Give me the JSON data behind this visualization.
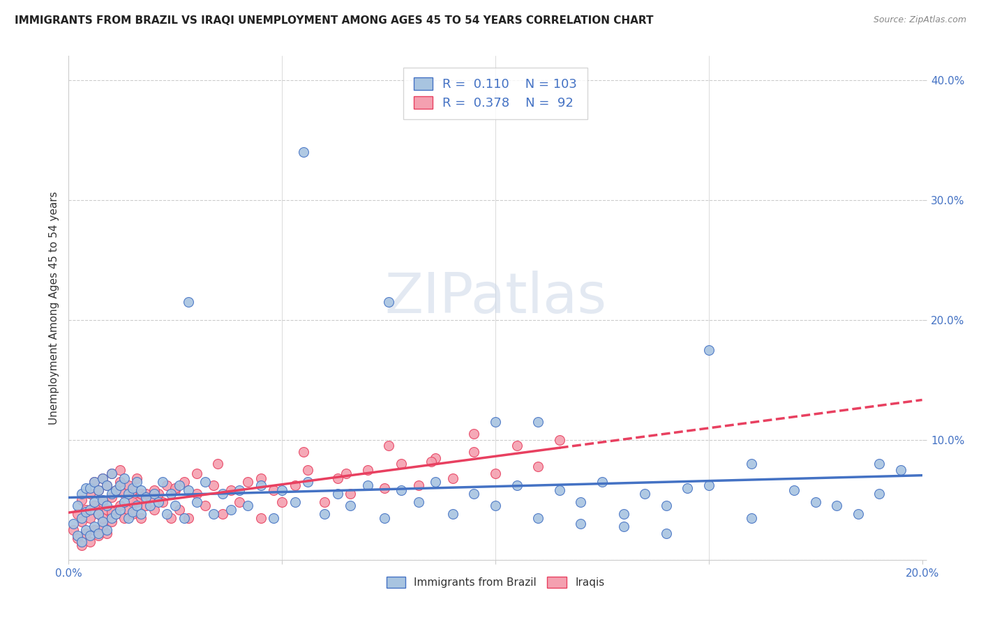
{
  "title": "IMMIGRANTS FROM BRAZIL VS IRAQI UNEMPLOYMENT AMONG AGES 45 TO 54 YEARS CORRELATION CHART",
  "source": "Source: ZipAtlas.com",
  "ylabel": "Unemployment Among Ages 45 to 54 years",
  "xlim": [
    0.0,
    0.2
  ],
  "ylim": [
    0.0,
    0.42
  ],
  "brazil_color": "#a8c4e0",
  "iraq_color": "#f4a0b0",
  "brazil_line_color": "#4472c4",
  "iraq_line_color": "#e84060",
  "brazil_R": 0.11,
  "brazil_N": 103,
  "iraq_R": 0.378,
  "iraq_N": 92,
  "watermark": "ZIPatlas",
  "brazil_scatter_x": [
    0.001,
    0.002,
    0.002,
    0.003,
    0.003,
    0.003,
    0.004,
    0.004,
    0.004,
    0.005,
    0.005,
    0.005,
    0.006,
    0.006,
    0.006,
    0.007,
    0.007,
    0.007,
    0.008,
    0.008,
    0.008,
    0.009,
    0.009,
    0.009,
    0.01,
    0.01,
    0.01,
    0.011,
    0.011,
    0.012,
    0.012,
    0.013,
    0.013,
    0.014,
    0.014,
    0.015,
    0.015,
    0.016,
    0.016,
    0.017,
    0.017,
    0.018,
    0.019,
    0.02,
    0.021,
    0.022,
    0.023,
    0.024,
    0.025,
    0.026,
    0.027,
    0.028,
    0.03,
    0.032,
    0.034,
    0.036,
    0.038,
    0.04,
    0.042,
    0.045,
    0.048,
    0.05,
    0.053,
    0.056,
    0.06,
    0.063,
    0.066,
    0.07,
    0.074,
    0.078,
    0.082,
    0.086,
    0.09,
    0.095,
    0.1,
    0.105,
    0.11,
    0.115,
    0.12,
    0.125,
    0.13,
    0.135,
    0.14,
    0.15,
    0.16,
    0.17,
    0.175,
    0.18,
    0.185,
    0.19,
    0.028,
    0.075,
    0.1,
    0.055,
    0.15,
    0.16,
    0.19,
    0.11,
    0.12,
    0.13,
    0.14,
    0.145,
    0.195
  ],
  "brazil_scatter_y": [
    0.03,
    0.02,
    0.045,
    0.015,
    0.035,
    0.055,
    0.025,
    0.04,
    0.06,
    0.02,
    0.042,
    0.06,
    0.028,
    0.048,
    0.065,
    0.022,
    0.038,
    0.058,
    0.032,
    0.05,
    0.068,
    0.025,
    0.045,
    0.062,
    0.035,
    0.055,
    0.072,
    0.038,
    0.058,
    0.042,
    0.062,
    0.048,
    0.068,
    0.035,
    0.055,
    0.04,
    0.06,
    0.045,
    0.065,
    0.038,
    0.058,
    0.052,
    0.045,
    0.055,
    0.048,
    0.065,
    0.038,
    0.055,
    0.045,
    0.062,
    0.035,
    0.058,
    0.048,
    0.065,
    0.038,
    0.055,
    0.042,
    0.058,
    0.045,
    0.062,
    0.035,
    0.058,
    0.048,
    0.065,
    0.038,
    0.055,
    0.045,
    0.062,
    0.035,
    0.058,
    0.048,
    0.065,
    0.038,
    0.055,
    0.045,
    0.062,
    0.035,
    0.058,
    0.048,
    0.065,
    0.038,
    0.055,
    0.045,
    0.062,
    0.035,
    0.058,
    0.048,
    0.045,
    0.038,
    0.055,
    0.215,
    0.215,
    0.115,
    0.34,
    0.175,
    0.08,
    0.08,
    0.115,
    0.03,
    0.028,
    0.022,
    0.06,
    0.075
  ],
  "iraq_scatter_x": [
    0.001,
    0.002,
    0.002,
    0.003,
    0.003,
    0.003,
    0.004,
    0.004,
    0.005,
    0.005,
    0.005,
    0.006,
    0.006,
    0.006,
    0.007,
    0.007,
    0.007,
    0.008,
    0.008,
    0.008,
    0.009,
    0.009,
    0.009,
    0.01,
    0.01,
    0.01,
    0.011,
    0.011,
    0.012,
    0.012,
    0.013,
    0.013,
    0.014,
    0.014,
    0.015,
    0.015,
    0.016,
    0.016,
    0.017,
    0.017,
    0.018,
    0.019,
    0.02,
    0.021,
    0.022,
    0.023,
    0.024,
    0.025,
    0.026,
    0.027,
    0.028,
    0.03,
    0.032,
    0.034,
    0.036,
    0.038,
    0.04,
    0.042,
    0.045,
    0.048,
    0.05,
    0.053,
    0.056,
    0.06,
    0.063,
    0.066,
    0.07,
    0.074,
    0.078,
    0.082,
    0.086,
    0.09,
    0.095,
    0.1,
    0.105,
    0.11,
    0.115,
    0.025,
    0.015,
    0.008,
    0.012,
    0.018,
    0.035,
    0.045,
    0.055,
    0.065,
    0.075,
    0.085,
    0.095,
    0.01,
    0.02,
    0.03
  ],
  "iraq_scatter_y": [
    0.025,
    0.018,
    0.038,
    0.012,
    0.032,
    0.05,
    0.022,
    0.042,
    0.015,
    0.035,
    0.055,
    0.025,
    0.045,
    0.065,
    0.02,
    0.038,
    0.058,
    0.028,
    0.048,
    0.068,
    0.022,
    0.042,
    0.062,
    0.032,
    0.052,
    0.072,
    0.038,
    0.058,
    0.045,
    0.065,
    0.035,
    0.055,
    0.042,
    0.062,
    0.038,
    0.058,
    0.048,
    0.068,
    0.035,
    0.055,
    0.045,
    0.052,
    0.042,
    0.055,
    0.048,
    0.062,
    0.035,
    0.058,
    0.042,
    0.065,
    0.035,
    0.055,
    0.045,
    0.062,
    0.038,
    0.058,
    0.048,
    0.065,
    0.035,
    0.058,
    0.048,
    0.062,
    0.075,
    0.048,
    0.068,
    0.055,
    0.075,
    0.06,
    0.08,
    0.062,
    0.085,
    0.068,
    0.09,
    0.072,
    0.095,
    0.078,
    0.1,
    0.06,
    0.048,
    0.035,
    0.075,
    0.055,
    0.08,
    0.068,
    0.09,
    0.072,
    0.095,
    0.082,
    0.105,
    0.04,
    0.058,
    0.072
  ]
}
